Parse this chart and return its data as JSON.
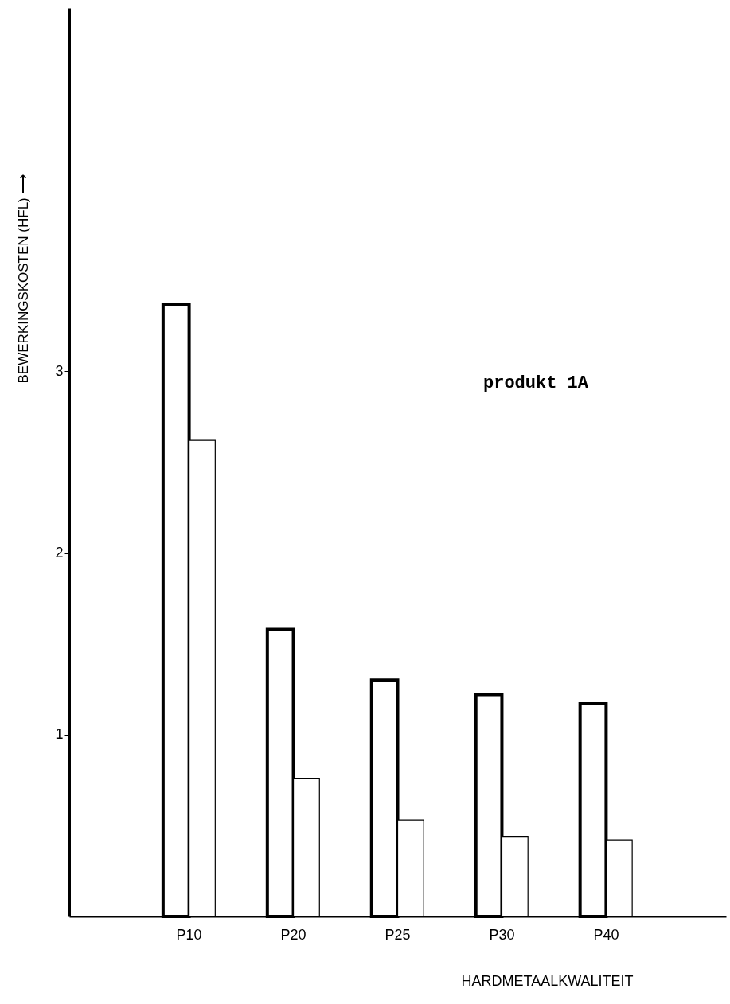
{
  "chart_data": {
    "type": "bar",
    "xlabel": "HARDMETAALKWALITEIT",
    "ylabel": "BEWERKINGSKOSTEN (HFL) ⟶",
    "categories": [
      "P10",
      "P20",
      "P25",
      "P30",
      "P40"
    ],
    "series": [
      {
        "color": "#ffffff",
        "values": [
          3.37,
          1.58,
          1.3,
          1.22,
          1.17
        ]
      },
      {
        "color": "#ffffff",
        "values": [
          2.62,
          0.76,
          0.53,
          0.44,
          0.42
        ]
      }
    ],
    "ylim": [
      0,
      5
    ],
    "yticks": [
      1,
      2,
      3
    ],
    "grid": false,
    "annotations": [
      "produkt 1A"
    ]
  }
}
